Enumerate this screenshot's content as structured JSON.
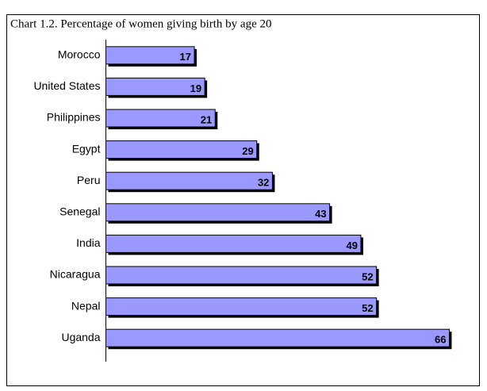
{
  "chart_data": {
    "type": "bar",
    "orientation": "horizontal",
    "title": "Chart 1.2. Percentage of women giving birth by age 20",
    "categories": [
      "Morocco",
      "United States",
      "Philippines",
      "Egypt",
      "Peru",
      "Senegal",
      "India",
      "Nicaragua",
      "Nepal",
      "Uganda"
    ],
    "values": [
      17,
      19,
      21,
      29,
      32,
      43,
      49,
      52,
      52,
      66
    ],
    "color": "#9999ff",
    "xlim": [
      0,
      70
    ]
  }
}
